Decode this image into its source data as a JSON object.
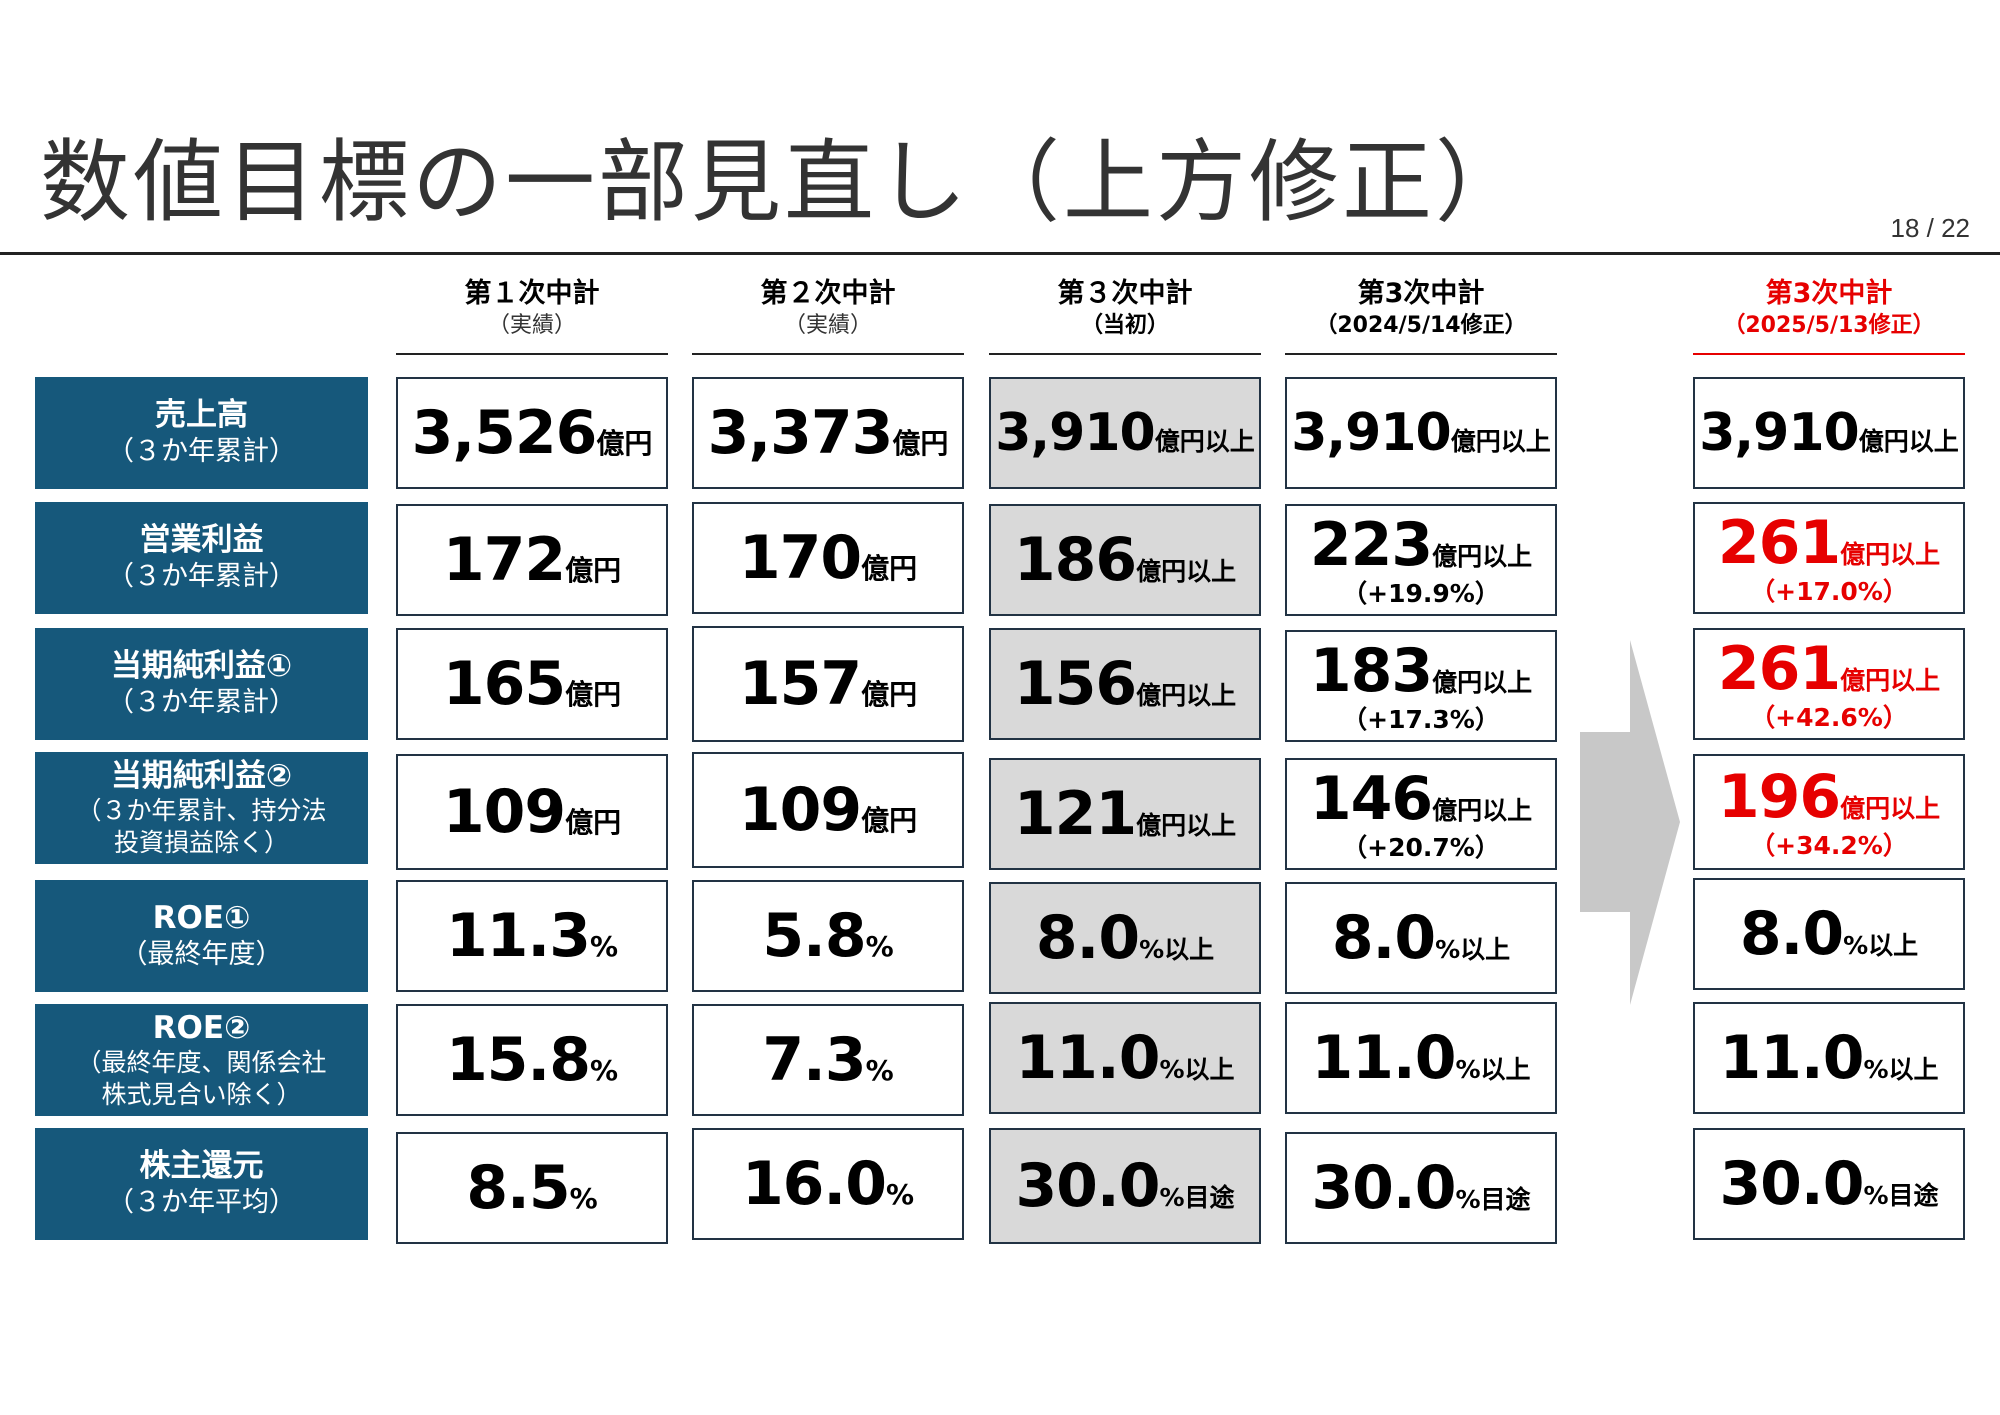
{
  "title": "数値目標の一部見直し（上方修正）",
  "page_number": "18 / 22",
  "columns": [
    {
      "line1": "第１次中計",
      "line2": "（実績）"
    },
    {
      "line1": "第２次中計",
      "line2": "（実績）"
    },
    {
      "line1": "第３次中計",
      "line2": "（当初）"
    },
    {
      "line1": "第3次中計",
      "line2": "（2024/5/14修正）"
    },
    {
      "line1": "第3次中計",
      "line2": "（2025/5/13修正）"
    }
  ],
  "rows": [
    {
      "label": "売上高",
      "sub": "（３か年累計）",
      "values": [
        {
          "num": "3,526",
          "unit": "億円"
        },
        {
          "num": "3,373",
          "unit": "億円"
        },
        {
          "num": "3,910",
          "unit": "億円以上"
        },
        {
          "num": "3,910",
          "unit": "億円以上"
        },
        {
          "num": "3,910",
          "unit": "億円以上"
        }
      ]
    },
    {
      "label": "営業利益",
      "sub": "（３か年累計）",
      "values": [
        {
          "num": "172",
          "unit": "億円"
        },
        {
          "num": "170",
          "unit": "億円"
        },
        {
          "num": "186",
          "unit": "億円以上"
        },
        {
          "num": "223",
          "unit": "億円以上",
          "change": "（+19.9%）"
        },
        {
          "num": "261",
          "unit": "億円以上",
          "change": "（+17.0%）"
        }
      ]
    },
    {
      "label": "当期純利益①",
      "sub": "（３か年累計）",
      "values": [
        {
          "num": "165",
          "unit": "億円"
        },
        {
          "num": "157",
          "unit": "億円"
        },
        {
          "num": "156",
          "unit": "億円以上"
        },
        {
          "num": "183",
          "unit": "億円以上",
          "change": "（+17.3%）"
        },
        {
          "num": "261",
          "unit": "億円以上",
          "change": "（+42.6%）"
        }
      ]
    },
    {
      "label": "当期純利益②",
      "sub": "（３か年累計、持分法",
      "sub2": "投資損益除く）",
      "values": [
        {
          "num": "109",
          "unit": "億円"
        },
        {
          "num": "109",
          "unit": "億円"
        },
        {
          "num": "121",
          "unit": "億円以上"
        },
        {
          "num": "146",
          "unit": "億円以上",
          "change": "（+20.7%）"
        },
        {
          "num": "196",
          "unit": "億円以上",
          "change": "（+34.2%）"
        }
      ]
    },
    {
      "label": "ROE①",
      "sub": "（最終年度）",
      "values": [
        {
          "num": "11.3",
          "unit": "%"
        },
        {
          "num": "5.8",
          "unit": "%"
        },
        {
          "num": "8.0",
          "unit": "%以上"
        },
        {
          "num": "8.0",
          "unit": "%以上"
        },
        {
          "num": "8.0",
          "unit": "%以上"
        }
      ]
    },
    {
      "label": "ROE②",
      "sub": "（最終年度、関係会社",
      "sub2": "株式見合い除く）",
      "values": [
        {
          "num": "15.8",
          "unit": "%"
        },
        {
          "num": "7.3",
          "unit": "%"
        },
        {
          "num": "11.0",
          "unit": "%以上"
        },
        {
          "num": "11.0",
          "unit": "%以上"
        },
        {
          "num": "11.0",
          "unit": "%以上"
        }
      ]
    },
    {
      "label": "株主還元",
      "sub": "（３か年平均）",
      "values": [
        {
          "num": "8.5",
          "unit": "%"
        },
        {
          "num": "16.0",
          "unit": "%"
        },
        {
          "num": "30.0",
          "unit": "%目途"
        },
        {
          "num": "30.0",
          "unit": "%目途"
        },
        {
          "num": "30.0",
          "unit": "%目途"
        }
      ]
    }
  ],
  "colors": {
    "label_bg": "#16587b",
    "initial_plan_bg": "#d9d9d9",
    "revision_red": "#e60000",
    "arrow": "#c8c8c8"
  },
  "icons": {
    "arrow": "right-arrow-icon"
  }
}
